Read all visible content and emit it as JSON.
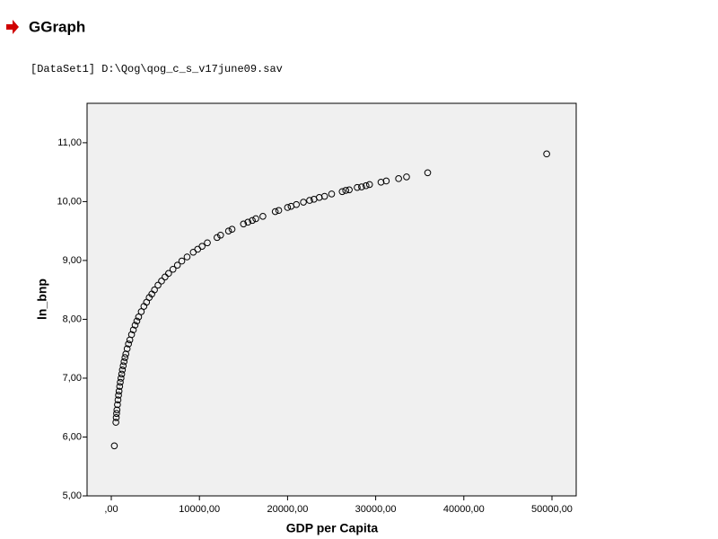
{
  "header": {
    "title": "GGraph",
    "dataset": "[DataSet1] D:\\Qog\\qog_c_s_v17june09.sav"
  },
  "chart_data": {
    "type": "scatter",
    "x_label": "GDP per Capita",
    "y_label": "ln_bnp",
    "color": "#000000",
    "xlim": [
      -2750,
      52750
    ],
    "ylim": [
      5,
      11.67
    ],
    "xticks": [
      {
        "value": 0,
        "label": ",00"
      },
      {
        "value": 10000,
        "label": "10000,00"
      },
      {
        "value": 20000,
        "label": "20000,00"
      },
      {
        "value": 30000,
        "label": "30000,00"
      },
      {
        "value": 40000,
        "label": "40000,00"
      },
      {
        "value": 50000,
        "label": "50000,00"
      }
    ],
    "yticks": [
      {
        "value": 5,
        "label": "5,00"
      },
      {
        "value": 6,
        "label": "6,00"
      },
      {
        "value": 7,
        "label": "7,00"
      },
      {
        "value": 8,
        "label": "8,00"
      },
      {
        "value": 9,
        "label": "9,00"
      },
      {
        "value": 10,
        "label": "10,00"
      },
      {
        "value": 11,
        "label": "11,00"
      }
    ],
    "x": [
      347,
      520,
      560,
      600,
      640,
      700,
      760,
      820,
      880,
      950,
      1020,
      1100,
      1180,
      1260,
      1350,
      1450,
      1550,
      1650,
      1800,
      1950,
      2100,
      2300,
      2500,
      2700,
      2900,
      3100,
      3400,
      3700,
      4000,
      4300,
      4600,
      4900,
      5300,
      5700,
      6100,
      6500,
      7000,
      7500,
      8000,
      8600,
      9300,
      9800,
      10300,
      10900,
      12000,
      12400,
      13300,
      13700,
      15000,
      15500,
      16000,
      16400,
      17200,
      18600,
      19000,
      20000,
      20400,
      21000,
      21800,
      22500,
      23000,
      23600,
      24200,
      25000,
      26200,
      26600,
      27000,
      27900,
      28400,
      28900,
      29300,
      30600,
      31200,
      32600,
      33500,
      35900,
      49400
    ],
    "values": [
      5.85,
      6.25,
      6.33,
      6.4,
      6.46,
      6.55,
      6.63,
      6.71,
      6.78,
      6.86,
      6.93,
      7.0,
      7.07,
      7.14,
      7.21,
      7.28,
      7.35,
      7.41,
      7.5,
      7.58,
      7.65,
      7.74,
      7.82,
      7.9,
      7.97,
      8.04,
      8.13,
      8.22,
      8.29,
      8.37,
      8.43,
      8.5,
      8.58,
      8.65,
      8.72,
      8.78,
      8.85,
      8.92,
      8.99,
      9.06,
      9.14,
      9.19,
      9.24,
      9.3,
      9.39,
      9.43,
      9.5,
      9.53,
      9.62,
      9.65,
      9.68,
      9.71,
      9.75,
      9.83,
      9.85,
      9.9,
      9.92,
      9.95,
      9.99,
      10.02,
      10.04,
      10.07,
      10.09,
      10.13,
      10.17,
      10.19,
      10.2,
      10.24,
      10.25,
      10.27,
      10.29,
      10.33,
      10.35,
      10.39,
      10.42,
      10.49,
      10.81
    ]
  }
}
